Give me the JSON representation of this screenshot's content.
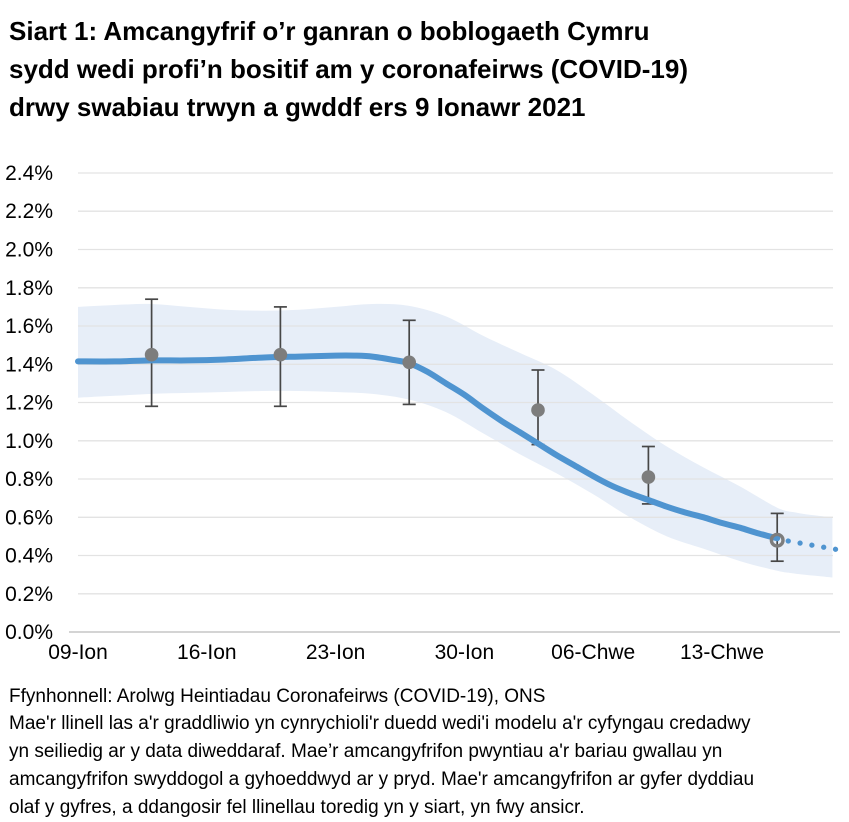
{
  "title": "Siart 1: Amcangyfrif o’r ganran o boblogaeth Cymru sydd wedi profi’n bositif am y coronafeirws (COVID-19) drwy swabiau trwyn a gwddf ers 9 Ionawr 2021",
  "title_lines": [
    "Siart 1: Amcangyfrif o’r ganran o boblogaeth Cymru",
    "sydd wedi profi’n bositif am y coronafeirws (COVID-19)",
    "drwy swabiau trwyn a gwddf ers 9 Ionawr 2021"
  ],
  "source": "Ffynhonnell: Arolwg Heintiadau Coronafeirws (COVID-19), ONS",
  "footnote_lines": [
    "Mae'r llinell las a'r graddliwio yn cynrychioli'r duedd wedi'i modelu a'r cyfyngau credadwy",
    "yn seiliedig ar y data diweddaraf. Mae’r amcangyfrifon pwyntiau a'r bariau gwallau yn",
    "amcangyfrifon swyddogol a gyhoeddwyd ar y pryd. Mae'r amcangyfrifon ar gyfer dyddiau",
    "olaf y gyfres, a ddangosir fel llinellau toredig yn y siart, yn fwy ansicr."
  ],
  "colors": {
    "trend_blue": "#4f94d0",
    "band_blue": "#e7eef8",
    "point_grey": "#7d7d7d",
    "error_bar_grey": "#474747",
    "gridline_grey": "#e3e3e3",
    "axis_grey": "#c6c6c6",
    "text_black": "#000000"
  },
  "chart_data": {
    "type": "line",
    "title": "Siart 1: Amcangyfrif o’r ganran o boblogaeth Cymru sydd wedi profi’n bositif am y coronafeirws (COVID-19) drwy swabiau trwyn a gwddf ers 9 Ionawr 2021",
    "xlabel": "",
    "ylabel": "",
    "x_unit": "days since 09 Ionawr 2021",
    "grid": true,
    "legend": null,
    "x_axis": {
      "ticks": [
        {
          "day": 0,
          "label": "09-Ion"
        },
        {
          "day": 7,
          "label": "16-Ion"
        },
        {
          "day": 14,
          "label": "23-Ion"
        },
        {
          "day": 21,
          "label": "30-Ion"
        },
        {
          "day": 28,
          "label": "06-Chwe"
        },
        {
          "day": 35,
          "label": "13-Chwe"
        }
      ],
      "range_days": [
        0,
        41.2
      ]
    },
    "y_axis": {
      "min": 0.0,
      "max": 2.4,
      "step": 0.2,
      "unit": "%",
      "tick_labels": [
        "0.0%",
        "0.2%",
        "0.4%",
        "0.6%",
        "0.8%",
        "1.0%",
        "1.2%",
        "1.4%",
        "1.6%",
        "1.8%",
        "2.0%",
        "2.2%",
        "2.4%"
      ]
    },
    "trend": {
      "days": [
        0,
        2,
        4,
        6,
        8,
        10,
        12,
        14,
        15,
        16,
        17,
        18,
        19,
        20,
        21,
        22,
        23,
        24,
        25,
        26,
        27,
        28,
        29,
        30,
        31,
        32,
        33,
        34,
        35,
        36,
        37,
        38
      ],
      "values_pct": [
        1.415,
        1.415,
        1.42,
        1.42,
        1.425,
        1.435,
        1.44,
        1.445,
        1.445,
        1.44,
        1.425,
        1.405,
        1.36,
        1.3,
        1.24,
        1.17,
        1.105,
        1.045,
        0.985,
        0.925,
        0.87,
        0.815,
        0.765,
        0.725,
        0.69,
        0.655,
        0.625,
        0.6,
        0.57,
        0.545,
        0.515,
        0.49
      ]
    },
    "trend_dotted": {
      "days": [
        38.6,
        41.2
      ],
      "values_pct": [
        0.476,
        0.432
      ]
    },
    "confidence_band": {
      "days": [
        0,
        2,
        4,
        6,
        8,
        10,
        12,
        14,
        16,
        18,
        20,
        22,
        24,
        26,
        28,
        30,
        32,
        34,
        36,
        38,
        39,
        40,
        41
      ],
      "upper_pct": [
        1.7,
        1.71,
        1.715,
        1.7,
        1.685,
        1.68,
        1.685,
        1.7,
        1.715,
        1.705,
        1.65,
        1.55,
        1.46,
        1.37,
        1.24,
        1.1,
        0.97,
        0.86,
        0.76,
        0.65,
        0.625,
        0.61,
        0.6
      ],
      "lower_pct": [
        1.225,
        1.235,
        1.245,
        1.25,
        1.255,
        1.26,
        1.26,
        1.255,
        1.245,
        1.215,
        1.15,
        1.04,
        0.93,
        0.83,
        0.72,
        0.6,
        0.5,
        0.435,
        0.37,
        0.32,
        0.305,
        0.295,
        0.285
      ]
    },
    "point_estimates": [
      {
        "day": 4,
        "estimate_pct": 1.45,
        "ci_low_pct": 1.18,
        "ci_high_pct": 1.74,
        "marker": "filled"
      },
      {
        "day": 11,
        "estimate_pct": 1.45,
        "ci_low_pct": 1.18,
        "ci_high_pct": 1.7,
        "marker": "filled"
      },
      {
        "day": 18,
        "estimate_pct": 1.41,
        "ci_low_pct": 1.19,
        "ci_high_pct": 1.63,
        "marker": "filled"
      },
      {
        "day": 25,
        "estimate_pct": 1.16,
        "ci_low_pct": 0.98,
        "ci_high_pct": 1.37,
        "marker": "filled"
      },
      {
        "day": 31,
        "estimate_pct": 0.81,
        "ci_low_pct": 0.67,
        "ci_high_pct": 0.97,
        "marker": "filled"
      },
      {
        "day": 38,
        "estimate_pct": 0.48,
        "ci_low_pct": 0.37,
        "ci_high_pct": 0.62,
        "marker": "open"
      }
    ]
  }
}
